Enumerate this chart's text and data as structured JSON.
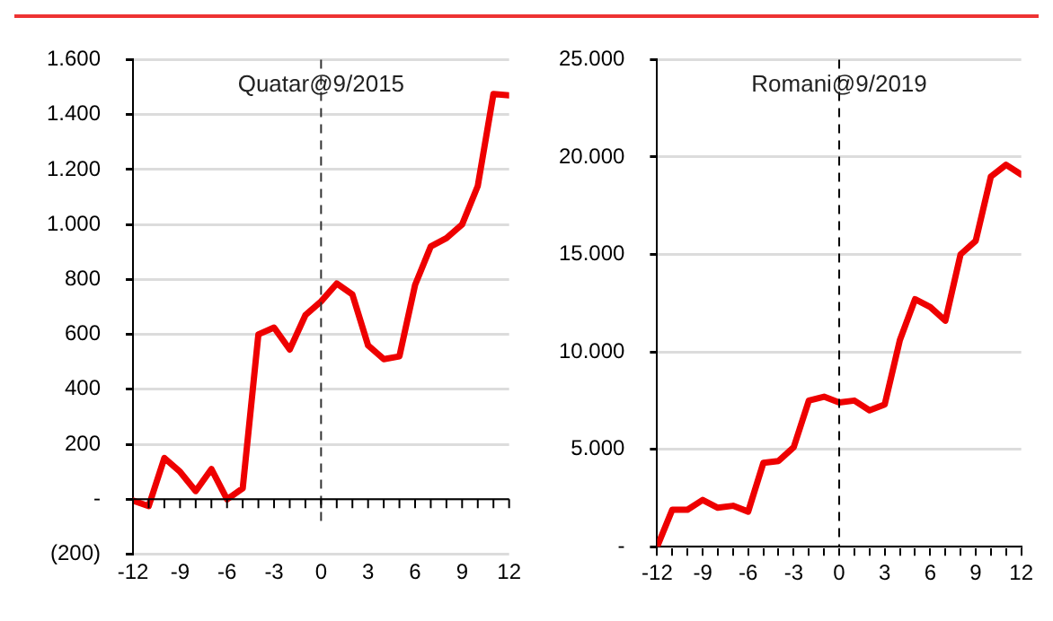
{
  "chart_data": [
    {
      "type": "line",
      "x": [
        -12,
        -11,
        -10,
        -9,
        -8,
        -7,
        -6,
        -5,
        -4,
        -3,
        -2,
        -1,
        0,
        1,
        2,
        3,
        4,
        5,
        6,
        7,
        8,
        9,
        10,
        11,
        12
      ],
      "series": [
        {
          "color": "#ee0000",
          "values": [
            -5,
            -25,
            150,
            100,
            30,
            110,
            0,
            40,
            600,
            625,
            545,
            670,
            720,
            785,
            745,
            560,
            510,
            520,
            780,
            920,
            950,
            1000,
            1140,
            1475,
            1470
          ]
        }
      ],
      "xlim": [
        -12,
        12
      ],
      "xticks": [
        -12,
        {
          "value": -11,
          "label": null
        },
        {
          "value": -10,
          "label": null
        },
        -9,
        {
          "value": -8,
          "label": null
        },
        {
          "value": -7,
          "label": null
        },
        -6,
        {
          "value": -5,
          "label": null
        },
        {
          "value": -4,
          "label": null
        },
        -3,
        {
          "value": -2,
          "label": null
        },
        {
          "value": -1,
          "label": null
        },
        0,
        {
          "value": 1,
          "label": null
        },
        {
          "value": 2,
          "label": null
        },
        3,
        {
          "value": 4,
          "label": null
        },
        {
          "value": 5,
          "label": null
        },
        6,
        {
          "value": 7,
          "label": null
        },
        {
          "value": 8,
          "label": null
        },
        9,
        {
          "value": 10,
          "label": null
        },
        {
          "value": 11,
          "label": null
        },
        12
      ],
      "ylim": [
        -200,
        1600
      ],
      "yticks": [
        {
          "value": -200,
          "label": "(200)"
        },
        {
          "value": 0,
          "label": "-"
        },
        200,
        400,
        600,
        800,
        {
          "value": 1000,
          "label": "1.000"
        },
        {
          "value": 1200,
          "label": "1.200"
        },
        {
          "value": 1400,
          "label": "1.400"
        },
        {
          "value": 1600,
          "label": "1.600"
        }
      ],
      "ref_lines": [
        {
          "axis": "x",
          "value": 0,
          "label": "Quatar@9/2015",
          "color": "#333333",
          "line_style": "dashed"
        }
      ],
      "grid": "y",
      "legend": false,
      "marker": "none",
      "line_style": "solid"
    },
    {
      "type": "line",
      "x": [
        -12,
        -11,
        -10,
        -9,
        -8,
        -7,
        -6,
        -5,
        -4,
        -3,
        -2,
        -1,
        0,
        1,
        2,
        3,
        4,
        5,
        6,
        7,
        8,
        9,
        10,
        11,
        12
      ],
      "series": [
        {
          "color": "#ee0000",
          "values": [
            0,
            1900,
            1900,
            2400,
            2000,
            2100,
            1800,
            4300,
            4400,
            5100,
            7500,
            7700,
            7400,
            7500,
            7000,
            7300,
            10600,
            12700,
            12300,
            11600,
            15000,
            15700,
            19000,
            19600,
            19100
          ]
        }
      ],
      "xlim": [
        -12,
        12
      ],
      "xticks": [
        -12,
        {
          "value": -11,
          "label": null
        },
        {
          "value": -10,
          "label": null
        },
        -9,
        {
          "value": -8,
          "label": null
        },
        {
          "value": -7,
          "label": null
        },
        -6,
        {
          "value": -5,
          "label": null
        },
        {
          "value": -4,
          "label": null
        },
        -3,
        {
          "value": -2,
          "label": null
        },
        {
          "value": -1,
          "label": null
        },
        0,
        {
          "value": 1,
          "label": null
        },
        {
          "value": 2,
          "label": null
        },
        3,
        {
          "value": 4,
          "label": null
        },
        {
          "value": 5,
          "label": null
        },
        6,
        {
          "value": 7,
          "label": null
        },
        {
          "value": 8,
          "label": null
        },
        9,
        {
          "value": 10,
          "label": null
        },
        {
          "value": 11,
          "label": null
        },
        12
      ],
      "ylim": [
        0,
        25000
      ],
      "yticks": [
        {
          "value": 0,
          "label": "-"
        },
        {
          "value": 5000,
          "label": "5.000"
        },
        {
          "value": 10000,
          "label": "10.000"
        },
        {
          "value": 15000,
          "label": "15.000"
        },
        {
          "value": 20000,
          "label": "20.000"
        },
        {
          "value": 25000,
          "label": "25.000"
        }
      ],
      "ref_lines": [
        {
          "axis": "x",
          "value": 0,
          "label": "Romani@9/2019",
          "color": "#000000",
          "line_style": "dashed"
        }
      ],
      "grid": "y",
      "legend": false,
      "marker": "none",
      "line_style": "solid"
    }
  ]
}
